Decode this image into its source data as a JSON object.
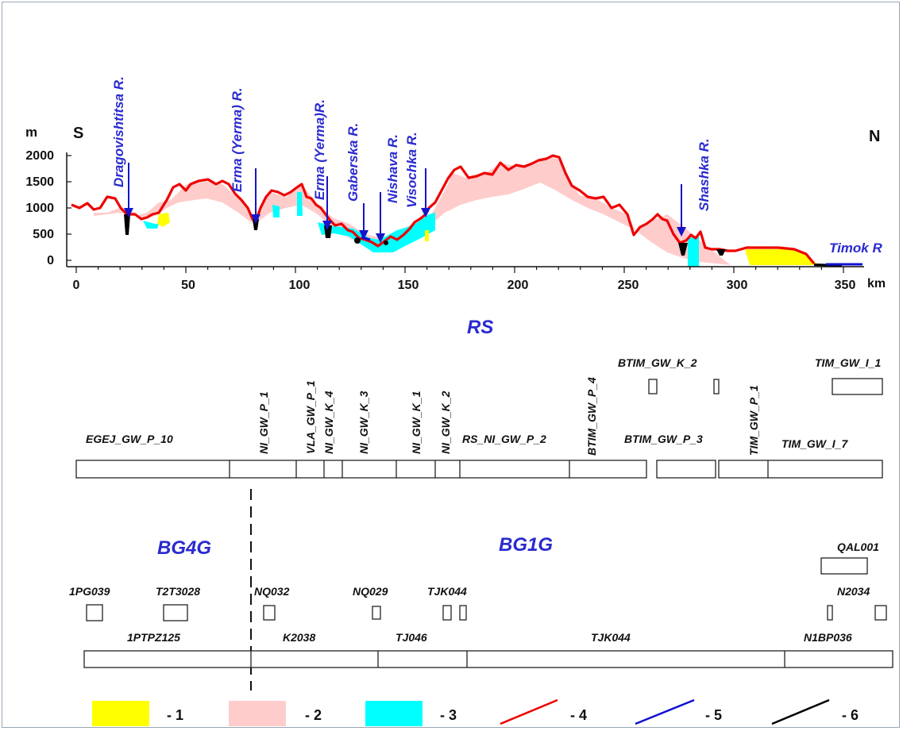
{
  "profile": {
    "axis_unit_y": "m",
    "axis_unit_x": "km",
    "dir_south": "S",
    "dir_north": "N",
    "y_ticks": [
      "2000",
      "1500",
      "1000",
      "500",
      "0"
    ],
    "x_ticks": [
      "0",
      "50",
      "100",
      "150",
      "200",
      "250",
      "300",
      "350"
    ],
    "rivers": [
      {
        "name": "Dragovishtitsa R.",
        "km": 24
      },
      {
        "name": "Erma (Yerma) R.",
        "km": 80
      },
      {
        "name": "Erma (Yerma)R.",
        "km": 112
      },
      {
        "name": "Gaberska  R.",
        "km": 129
      },
      {
        "name": "Nishava R.",
        "km": 138
      },
      {
        "name": "Visochka R.",
        "km": 157
      },
      {
        "name": "Shashka R.",
        "km": 275
      },
      {
        "name": "Timok R",
        "km": 355
      }
    ],
    "colors": {
      "yellow": "#ffff00",
      "pink": "#ffcccc",
      "cyan": "#00ffff",
      "red": "#ee0000",
      "blue": "#1010d0",
      "black": "#000000"
    }
  },
  "rs": {
    "title": "RS",
    "labels": [
      "EGEJ_GW_P_10",
      "NI_GW_P_1",
      "VLA_GW_P_1",
      "NI_GW_K_4",
      "NI_GW_K_3",
      "NI_GW_K_1",
      "NI_GW_K_2",
      "RS_NI_GW_P_2",
      "BTIM_GW_P_4",
      "BTIM_GW_K_2",
      "BTIM_GW_P_3",
      "TIM_GW_P_1",
      "TIM_GW_I_1",
      "TIM_GW_I_7"
    ]
  },
  "bg": {
    "left_title": "BG4G",
    "right_title": "BG1G",
    "labels": [
      "1PG039",
      "T2T3028",
      "NQ032",
      "NQ029",
      "TJK044",
      "QAL001",
      "N2034",
      "1PTPZ125",
      "K2038",
      "TJ046",
      "TJK044",
      "N1BP036"
    ]
  },
  "legend": [
    "- 1",
    "- 2",
    "- 3",
    "- 4",
    "- 5",
    "- 6"
  ]
}
